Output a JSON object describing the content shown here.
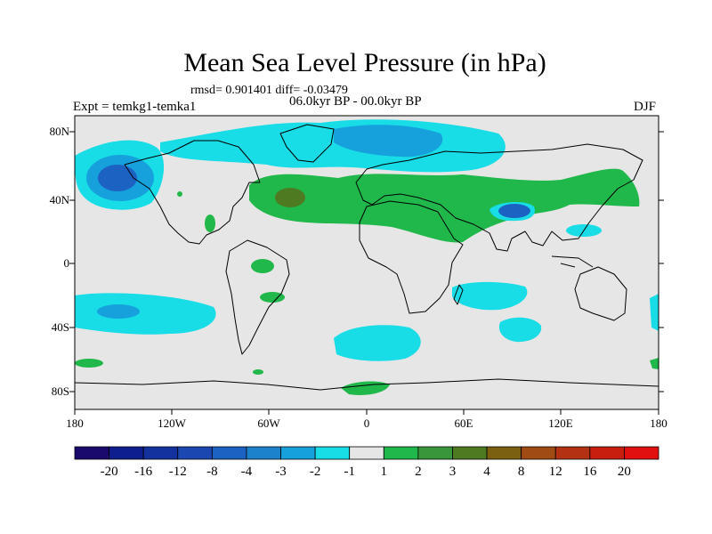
{
  "title": "Mean Sea Level Pressure (in hPa)",
  "stats": "rmsd= 0.901401 diff= -0.03479",
  "period": "06.0kyr BP - 00.0kyr BP",
  "experiment": "Expt = temkg1-temka1",
  "season": "DJF",
  "lat_labels": [
    "80N",
    "40N",
    "0",
    "40S",
    "80S"
  ],
  "lon_labels": [
    "180",
    "120W",
    "60W",
    "0",
    "60E",
    "120E",
    "180"
  ],
  "colorbar": {
    "labels": [
      "-20",
      "-16",
      "-12",
      "-8",
      "-4",
      "-3",
      "-2",
      "-1",
      "1",
      "2",
      "3",
      "4",
      "8",
      "12",
      "16",
      "20"
    ],
    "colors": [
      "#1a0a6e",
      "#0e1e8c",
      "#14329e",
      "#1a48b0",
      "#1c62c2",
      "#1c82cc",
      "#16a0dc",
      "#18dce6",
      "#e6e6e6",
      "#20b84a",
      "#3a963a",
      "#4e7a22",
      "#7a6010",
      "#a04a14",
      "#b43214",
      "#c81e10",
      "#e01010"
    ]
  }
}
